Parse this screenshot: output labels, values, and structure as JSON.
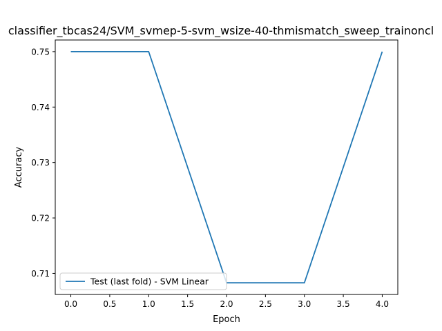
{
  "chart_data": {
    "type": "line",
    "title": "classifier_tbcas24/SVM_svmep-5-svm_wsize-40-thmismatch_sweep_trainoncl",
    "xlabel": "Epoch",
    "ylabel": "Accuracy",
    "x": [
      0,
      1,
      2,
      3,
      4
    ],
    "series": [
      {
        "name": "Test (last fold) - SVM Linear",
        "values": [
          0.75,
          0.75,
          0.7083,
          0.7083,
          0.75
        ],
        "color": "#1f77b4"
      }
    ],
    "xlim": [
      -0.2,
      4.2
    ],
    "ylim": [
      0.7062,
      0.7521
    ],
    "xticks": [
      0.0,
      0.5,
      1.0,
      1.5,
      2.0,
      2.5,
      3.0,
      3.5,
      4.0
    ],
    "xtick_labels": [
      "0.0",
      "0.5",
      "1.0",
      "1.5",
      "2.0",
      "2.5",
      "3.0",
      "3.5",
      "4.0"
    ],
    "yticks": [
      0.71,
      0.72,
      0.73,
      0.74,
      0.75
    ],
    "ytick_labels": [
      "0.71",
      "0.72",
      "0.73",
      "0.74",
      "0.75"
    ],
    "grid": false,
    "legend_position": "lower-left"
  }
}
